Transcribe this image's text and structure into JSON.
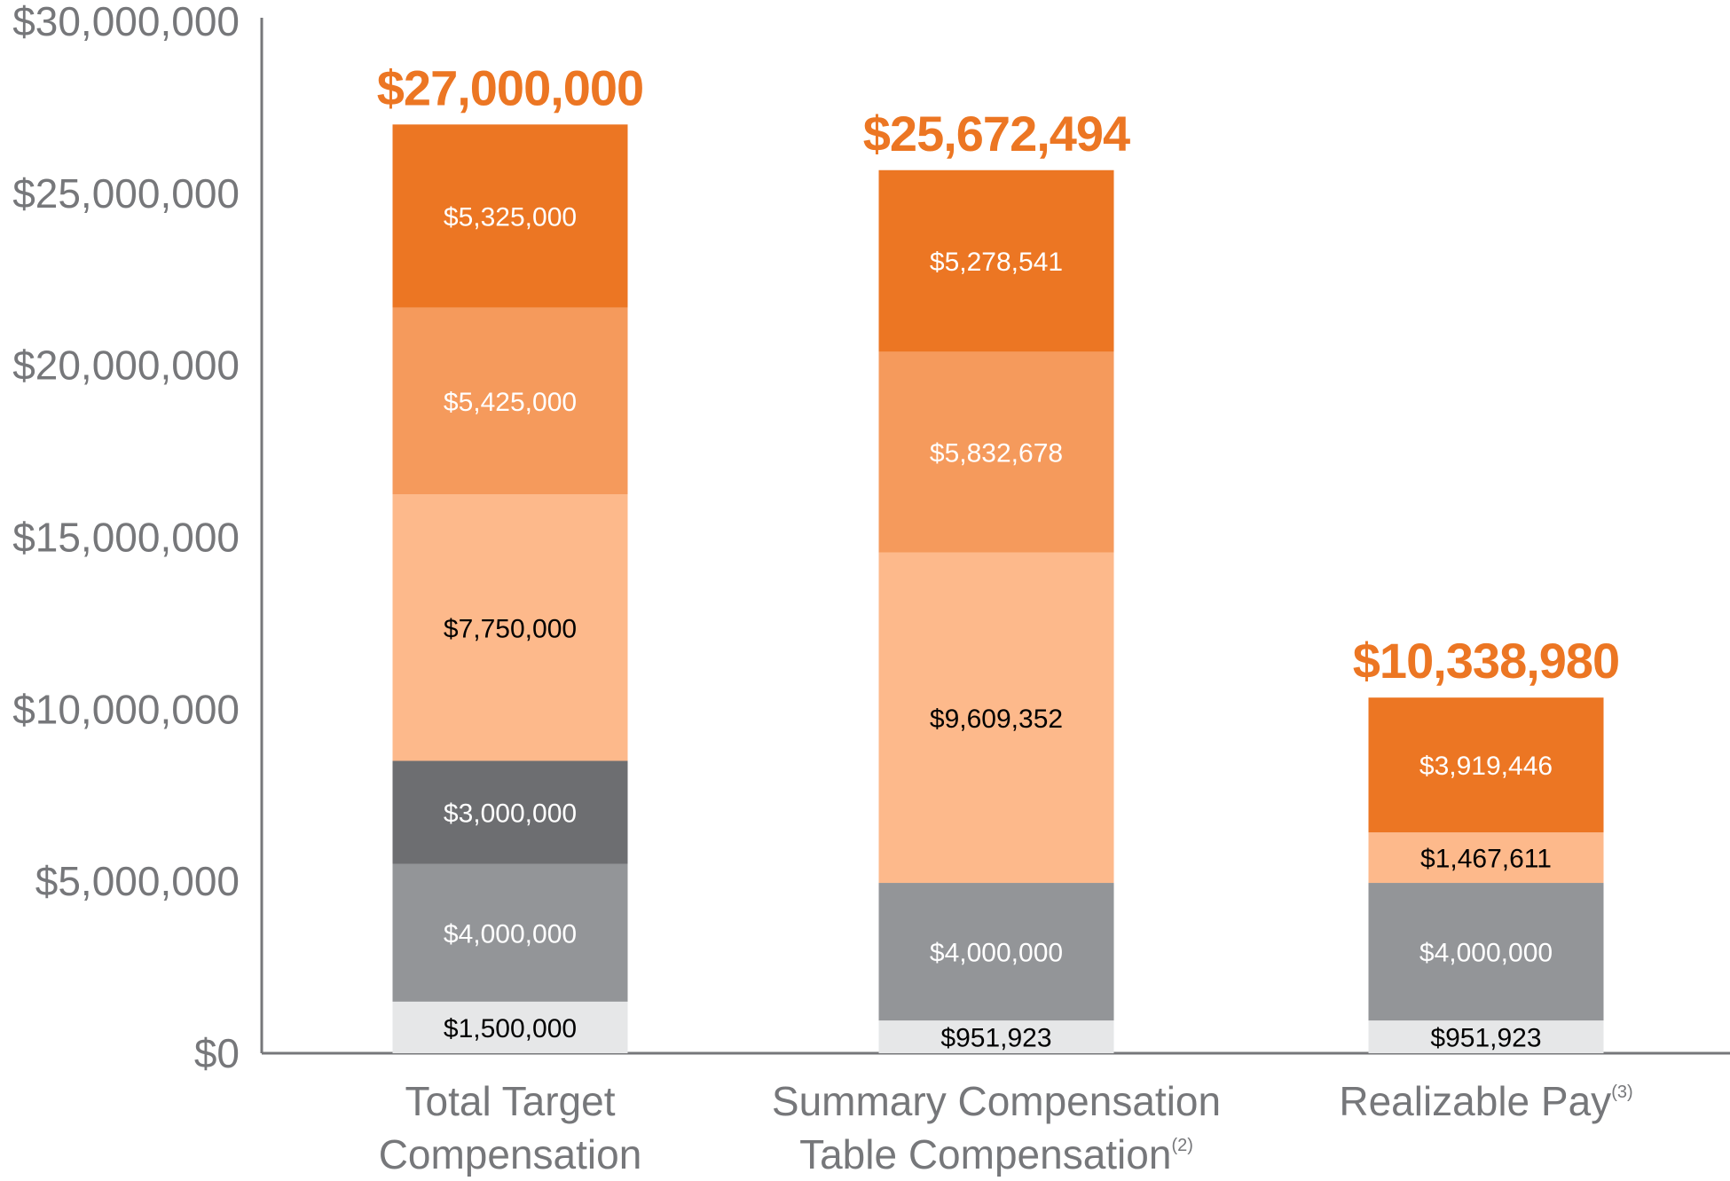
{
  "chart_data": {
    "type": "bar",
    "stacked": true,
    "title": "",
    "xlabel": "",
    "ylabel": "",
    "ylim": [
      0,
      30000000
    ],
    "grid": false,
    "legend": "none",
    "y_tick_labels": [
      "$0",
      "$5,000,000",
      "$10,000,000",
      "$15,000,000",
      "$20,000,000",
      "$25,000,000",
      "$30,000,000"
    ],
    "y_tick_values": [
      0,
      5000000,
      10000000,
      15000000,
      20000000,
      25000000,
      30000000
    ],
    "categories": [
      {
        "lines": [
          "Total Target",
          "Compensation"
        ],
        "sup": ""
      },
      {
        "lines": [
          "Summary Compensation",
          "Table Compensation"
        ],
        "sup": "(2)"
      },
      {
        "lines": [
          "Realizable Pay"
        ],
        "sup": "(3)"
      }
    ],
    "totals": [
      27000000,
      25672494,
      10338980
    ],
    "total_labels": [
      "$27,000,000",
      "$25,672,494",
      "$10,338,980"
    ],
    "stacks": [
      [
        {
          "value": 1500000,
          "label": "$1,500,000",
          "color": "#e6e7e8",
          "text_color": "#000000"
        },
        {
          "value": 4000000,
          "label": "$4,000,000",
          "color": "#939598",
          "text_color": "#ffffff"
        },
        {
          "value": 3000000,
          "label": "$3,000,000",
          "color": "#6d6e71",
          "text_color": "#ffffff"
        },
        {
          "value": 7750000,
          "label": "$7,750,000",
          "color": "#fdb98b",
          "text_color": "#000000"
        },
        {
          "value": 5425000,
          "label": "$5,425,000",
          "color": "#f59a5c",
          "text_color": "#ffffff"
        },
        {
          "value": 5325000,
          "label": "$5,325,000",
          "color": "#ec7623",
          "text_color": "#ffffff"
        }
      ],
      [
        {
          "value": 951923,
          "label": "$951,923",
          "color": "#e6e7e8",
          "text_color": "#000000"
        },
        {
          "value": 4000000,
          "label": "$4,000,000",
          "color": "#939598",
          "text_color": "#ffffff"
        },
        {
          "value": 9609352,
          "label": "$9,609,352",
          "color": "#fdb98b",
          "text_color": "#000000"
        },
        {
          "value": 5832678,
          "label": "$5,832,678",
          "color": "#f59a5c",
          "text_color": "#ffffff"
        },
        {
          "value": 5278541,
          "label": "$5,278,541",
          "color": "#ec7623",
          "text_color": "#ffffff"
        }
      ],
      [
        {
          "value": 951923,
          "label": "$951,923",
          "color": "#e6e7e8",
          "text_color": "#000000"
        },
        {
          "value": 4000000,
          "label": "$4,000,000",
          "color": "#939598",
          "text_color": "#ffffff"
        },
        {
          "value": 1467611,
          "label": "$1,467,611",
          "color": "#fdb98b",
          "text_color": "#000000"
        },
        {
          "value": 3919446,
          "label": "$3,919,446",
          "color": "#ec7623",
          "text_color": "#ffffff"
        }
      ]
    ],
    "colors": {
      "total_label": "#ec7623",
      "axis": "#76777a",
      "tick_text": "#76777a"
    }
  }
}
